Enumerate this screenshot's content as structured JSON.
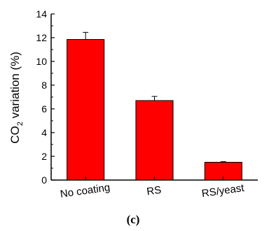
{
  "chart_data": {
    "type": "bar",
    "categories": [
      "No coating",
      "RS",
      "RS/yeast"
    ],
    "values": [
      11.85,
      6.7,
      1.5
    ],
    "errors": [
      0.6,
      0.35,
      0.05
    ],
    "ylabel_main": "CO",
    "ylabel_sub": "2",
    "ylabel_rest": " variation (%)",
    "xlabel": "",
    "ylim": [
      0,
      14
    ],
    "yticks": [
      0,
      2,
      4,
      6,
      8,
      10,
      12,
      14
    ],
    "bar_color": "#ff0000",
    "grid": false,
    "legend": "none",
    "panel_label": "(c)"
  }
}
